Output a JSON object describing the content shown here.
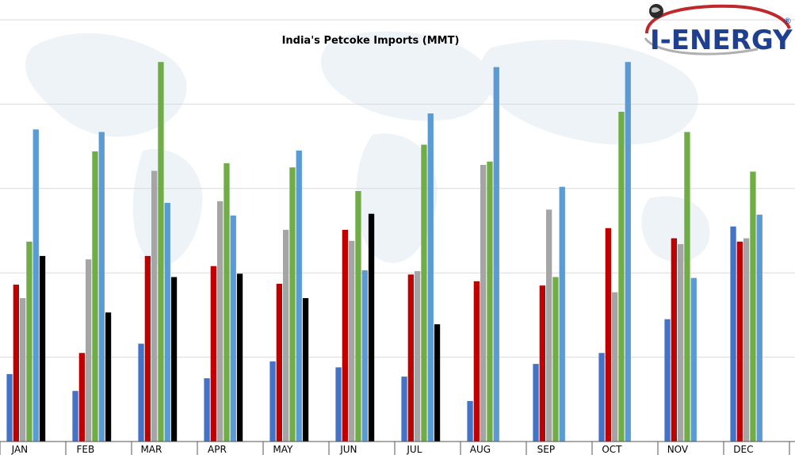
{
  "logo": {
    "text": "I-ENERGY",
    "mark": "®"
  },
  "colors": {
    "grid": "#d9d9d9",
    "axis": "#555555",
    "bg_map": "#eef3f8",
    "logo_red": "#c0292b",
    "logo_blue": "#1f3f8f"
  },
  "chart_data": {
    "type": "bar",
    "title": "India's Petcoke Imports (MMT)",
    "xlabel": "",
    "ylabel": "",
    "ylim": [
      0,
      5
    ],
    "grid": true,
    "legend": "none",
    "categories": [
      "JAN",
      "FEB",
      "MAR",
      "APR",
      "MAY",
      "JUN",
      "JUL",
      "AUG",
      "SEP",
      "OCT",
      "NOV",
      "DEC"
    ],
    "series": [
      {
        "color": "#4472c4",
        "values": [
          0.8,
          0.6,
          1.16,
          0.75,
          0.95,
          0.88,
          0.77,
          0.48,
          0.92,
          1.05,
          1.45,
          2.55
        ]
      },
      {
        "color": "#c00000",
        "values": [
          1.86,
          1.05,
          2.2,
          2.08,
          1.87,
          2.51,
          1.98,
          1.9,
          1.85,
          2.53,
          2.41,
          2.37
        ]
      },
      {
        "color": "#a5a5a5",
        "values": [
          1.7,
          2.16,
          3.21,
          2.85,
          2.51,
          2.38,
          2.02,
          3.28,
          2.75,
          1.77,
          2.34,
          2.41
        ]
      },
      {
        "color": "#70ad47",
        "values": [
          2.37,
          3.44,
          4.5,
          3.3,
          3.25,
          2.97,
          3.52,
          3.32,
          1.95,
          3.91,
          3.67,
          3.2
        ]
      },
      {
        "color": "#5b9bd5",
        "values": [
          3.7,
          3.67,
          2.83,
          2.68,
          3.45,
          2.03,
          3.89,
          4.44,
          3.02,
          4.5,
          1.94,
          2.69
        ]
      },
      {
        "color": "#000000",
        "values": [
          2.2,
          1.53,
          1.95,
          1.99,
          1.7,
          2.7,
          1.39,
          null,
          null,
          null,
          null,
          null
        ]
      }
    ]
  }
}
